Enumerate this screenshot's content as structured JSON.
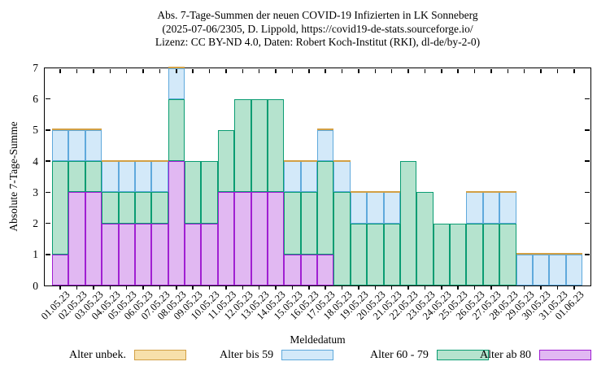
{
  "title": {
    "line1": "Abs. 7-Tage-Summen der neuen COVID-19 Infizierten in LK Sonneberg",
    "line2": "(2025-07-06/2305, D. Lippold, https://covid19-de-stats.sourceforge.io/",
    "line3": "Lizenz: CC BY-ND 4.0, Daten: Robert Koch-Institut (RKI), dl-de/by-2-0)"
  },
  "chart_data": {
    "type": "bar",
    "stacked": true,
    "title": "Abs. 7-Tage-Summen der neuen COVID-19 Infizierten in LK Sonneberg (2025-07-06/2305, D. Lippold, https://covid19-de-stats.sourceforge.io/ Lizenz: CC BY-ND 4.0, Daten: Robert Koch-Institut (RKI), dl-de/by-2-0)",
    "xlabel": "Meldedatum",
    "ylabel": "Absolute 7-Tage-Summe",
    "ylim": [
      0,
      7
    ],
    "yticks": [
      0,
      1,
      2,
      3,
      4,
      5,
      6,
      7
    ],
    "grid": false,
    "legend_position": "bottom",
    "categories": [
      "01.05.23",
      "02.05.23",
      "03.05.23",
      "04.05.23",
      "05.05.23",
      "06.05.23",
      "07.05.23",
      "08.05.23",
      "09.05.23",
      "10.05.23",
      "11.05.23",
      "12.05.23",
      "13.05.23",
      "14.05.23",
      "15.05.23",
      "16.05.23",
      "17.05.23",
      "18.05.23",
      "19.05.23",
      "20.05.23",
      "21.05.23",
      "22.05.23",
      "23.05.23",
      "24.05.23",
      "25.05.23",
      "26.05.23",
      "27.05.23",
      "28.05.23",
      "29.05.23",
      "30.05.23",
      "31.05.23",
      "01.06.23"
    ],
    "series": [
      {
        "name": "Alter unbek.",
        "fill": "#f7e0ab",
        "border": "#d2a045",
        "values": [
          0,
          0,
          0,
          0,
          0,
          0,
          0,
          0,
          0,
          0,
          0,
          0,
          0,
          0,
          0,
          0,
          0,
          0,
          0,
          0,
          0,
          0,
          0,
          0,
          0,
          0,
          0,
          0,
          0,
          0,
          0,
          0
        ]
      },
      {
        "name": "Alter bis 59",
        "fill": "#d3e9f9",
        "border": "#5fa9dc",
        "values": [
          1,
          1,
          1,
          1,
          1,
          1,
          1,
          1,
          0,
          0,
          0,
          0,
          0,
          0,
          1,
          1,
          1,
          1,
          1,
          1,
          1,
          0,
          0,
          0,
          0,
          1,
          1,
          1,
          1,
          1,
          1,
          1
        ]
      },
      {
        "name": "Alter 60 - 79",
        "fill": "#b5e3ce",
        "border": "#0a9c72",
        "values": [
          3,
          1,
          1,
          1,
          1,
          1,
          1,
          2,
          2,
          2,
          2,
          3,
          3,
          3,
          2,
          2,
          3,
          3,
          2,
          2,
          2,
          4,
          3,
          2,
          2,
          2,
          2,
          2,
          0,
          0,
          0,
          0
        ]
      },
      {
        "name": "Alter ab 80",
        "fill": "#e1b8f2",
        "border": "#a01fd2",
        "values": [
          1,
          3,
          3,
          2,
          2,
          2,
          2,
          4,
          2,
          2,
          3,
          3,
          3,
          3,
          1,
          1,
          1,
          0,
          0,
          0,
          0,
          0,
          0,
          0,
          0,
          0,
          0,
          0,
          0,
          0,
          0,
          0
        ]
      }
    ],
    "totals": [
      5,
      5,
      5,
      4,
      4,
      4,
      4,
      7,
      4,
      4,
      5,
      6,
      6,
      6,
      4,
      4,
      5,
      4,
      3,
      3,
      3,
      4,
      3,
      2,
      2,
      3,
      3,
      3,
      1,
      1,
      1,
      1
    ]
  },
  "axis_color": "#000000"
}
